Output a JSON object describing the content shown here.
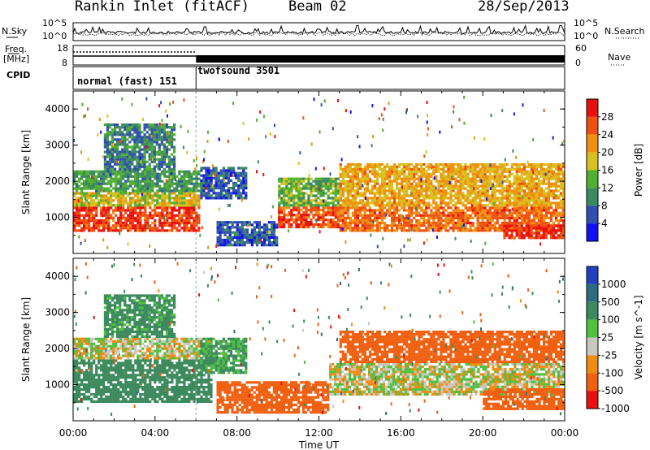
{
  "header": {
    "site": "Rankin Inlet (fitACF)",
    "beam": "Beam 02",
    "date": "28/Sep/2013"
  },
  "aux": {
    "nsky_label": "N.Sky",
    "nsearch_label": "N.Search",
    "freq_label_1": "Freq.",
    "freq_label_2": "[MHz]",
    "nave_label": "Nave",
    "cpid_label": "CPID",
    "left_ticks_top": [
      "10^5",
      "10^0"
    ],
    "right_ticks_top": [
      "10^5",
      "10^0"
    ],
    "left_ticks_freq": [
      "18",
      "8"
    ],
    "right_ticks_nave": [
      "60",
      "0"
    ],
    "modes": [
      "normal (fast) 151",
      "twofsound 3501"
    ],
    "mode_switch_hour": 6
  },
  "colors": {
    "power_scale": [
      "#1010f0",
      "#3050b0",
      "#3c8a5e",
      "#50b030",
      "#d8c020",
      "#f09010",
      "#f05010",
      "#e81010"
    ],
    "velocity_scale": [
      "#2040c0",
      "#2e6a80",
      "#3c8a5e",
      "#50c040",
      "#c8c8c0",
      "#f08c10",
      "#f06010",
      "#e81010"
    ]
  },
  "chart_data": [
    {
      "type": "heatmap",
      "panel": "power",
      "x_axis": {
        "label": "Time UT",
        "range_hours": [
          0,
          24
        ],
        "ticks": [
          "00:00",
          "04:00",
          "08:00",
          "12:00",
          "16:00",
          "20:00",
          "00:00"
        ]
      },
      "y_axis": {
        "label": "Slant Range [km]",
        "range": [
          0,
          4500
        ],
        "ticks": [
          "1000",
          "2000",
          "3000",
          "4000"
        ]
      },
      "colorbar": {
        "label": "Power [dB]",
        "range": [
          0,
          30
        ],
        "ticks": [
          "4",
          "8",
          "12",
          "16",
          "20",
          "24",
          "28"
        ]
      },
      "bands": [
        {
          "t0": 0.0,
          "t1": 6.2,
          "r0": 600,
          "r1": 1300,
          "level": 26
        },
        {
          "t0": 0.0,
          "t1": 6.2,
          "r0": 1300,
          "r1": 1700,
          "level": 17
        },
        {
          "t0": 0.0,
          "t1": 6.2,
          "r0": 1700,
          "r1": 2300,
          "level": 11
        },
        {
          "t0": 1.5,
          "t1": 5.0,
          "r0": 2300,
          "r1": 3600,
          "level": 9
        },
        {
          "t0": 6.2,
          "t1": 8.5,
          "r0": 1500,
          "r1": 2400,
          "level": 6
        },
        {
          "t0": 7.0,
          "t1": 10.0,
          "r0": 200,
          "r1": 900,
          "level": 6
        },
        {
          "t0": 10.0,
          "t1": 13.0,
          "r0": 700,
          "r1": 1300,
          "level": 25
        },
        {
          "t0": 10.0,
          "t1": 13.0,
          "r0": 1300,
          "r1": 2100,
          "level": 13
        },
        {
          "t0": 13.0,
          "t1": 24.0,
          "r0": 600,
          "r1": 1300,
          "level": 23
        },
        {
          "t0": 13.0,
          "t1": 24.0,
          "r0": 1300,
          "r1": 2500,
          "level": 19
        },
        {
          "t0": 21.0,
          "t1": 24.0,
          "r0": 400,
          "r1": 800,
          "level": 27
        }
      ]
    },
    {
      "type": "heatmap",
      "panel": "velocity",
      "x_axis": {
        "label": "Time UT",
        "range_hours": [
          0,
          24
        ],
        "ticks": [
          "00:00",
          "04:00",
          "08:00",
          "12:00",
          "16:00",
          "20:00",
          "00:00"
        ]
      },
      "y_axis": {
        "label": "Slant Range [km]",
        "range": [
          0,
          4500
        ],
        "ticks": [
          "1000",
          "2000",
          "3000",
          "4000"
        ]
      },
      "colorbar": {
        "label": "Velocity [m s^-1]",
        "range": [
          -1500,
          1500
        ],
        "ticks": [
          "1000",
          "500",
          "100",
          "25",
          "-25",
          "-100",
          "-500",
          "-1000"
        ]
      },
      "bands": [
        {
          "t0": 0.0,
          "t1": 6.8,
          "r0": 500,
          "r1": 1700,
          "level": 200
        },
        {
          "t0": 0.0,
          "t1": 6.8,
          "r0": 1700,
          "r1": 2300,
          "level": 0
        },
        {
          "t0": 1.5,
          "t1": 5.0,
          "r0": 2300,
          "r1": 3500,
          "level": 150
        },
        {
          "t0": 6.2,
          "t1": 8.5,
          "r0": 1300,
          "r1": 2300,
          "level": 120
        },
        {
          "t0": 7.0,
          "t1": 12.5,
          "r0": 200,
          "r1": 1100,
          "level": -200
        },
        {
          "t0": 12.5,
          "t1": 24.0,
          "r0": 700,
          "r1": 1600,
          "level": 0
        },
        {
          "t0": 13.0,
          "t1": 24.0,
          "r0": 1600,
          "r1": 2500,
          "level": -200
        },
        {
          "t0": 20.0,
          "t1": 24.0,
          "r0": 300,
          "r1": 900,
          "level": -250
        }
      ]
    }
  ]
}
